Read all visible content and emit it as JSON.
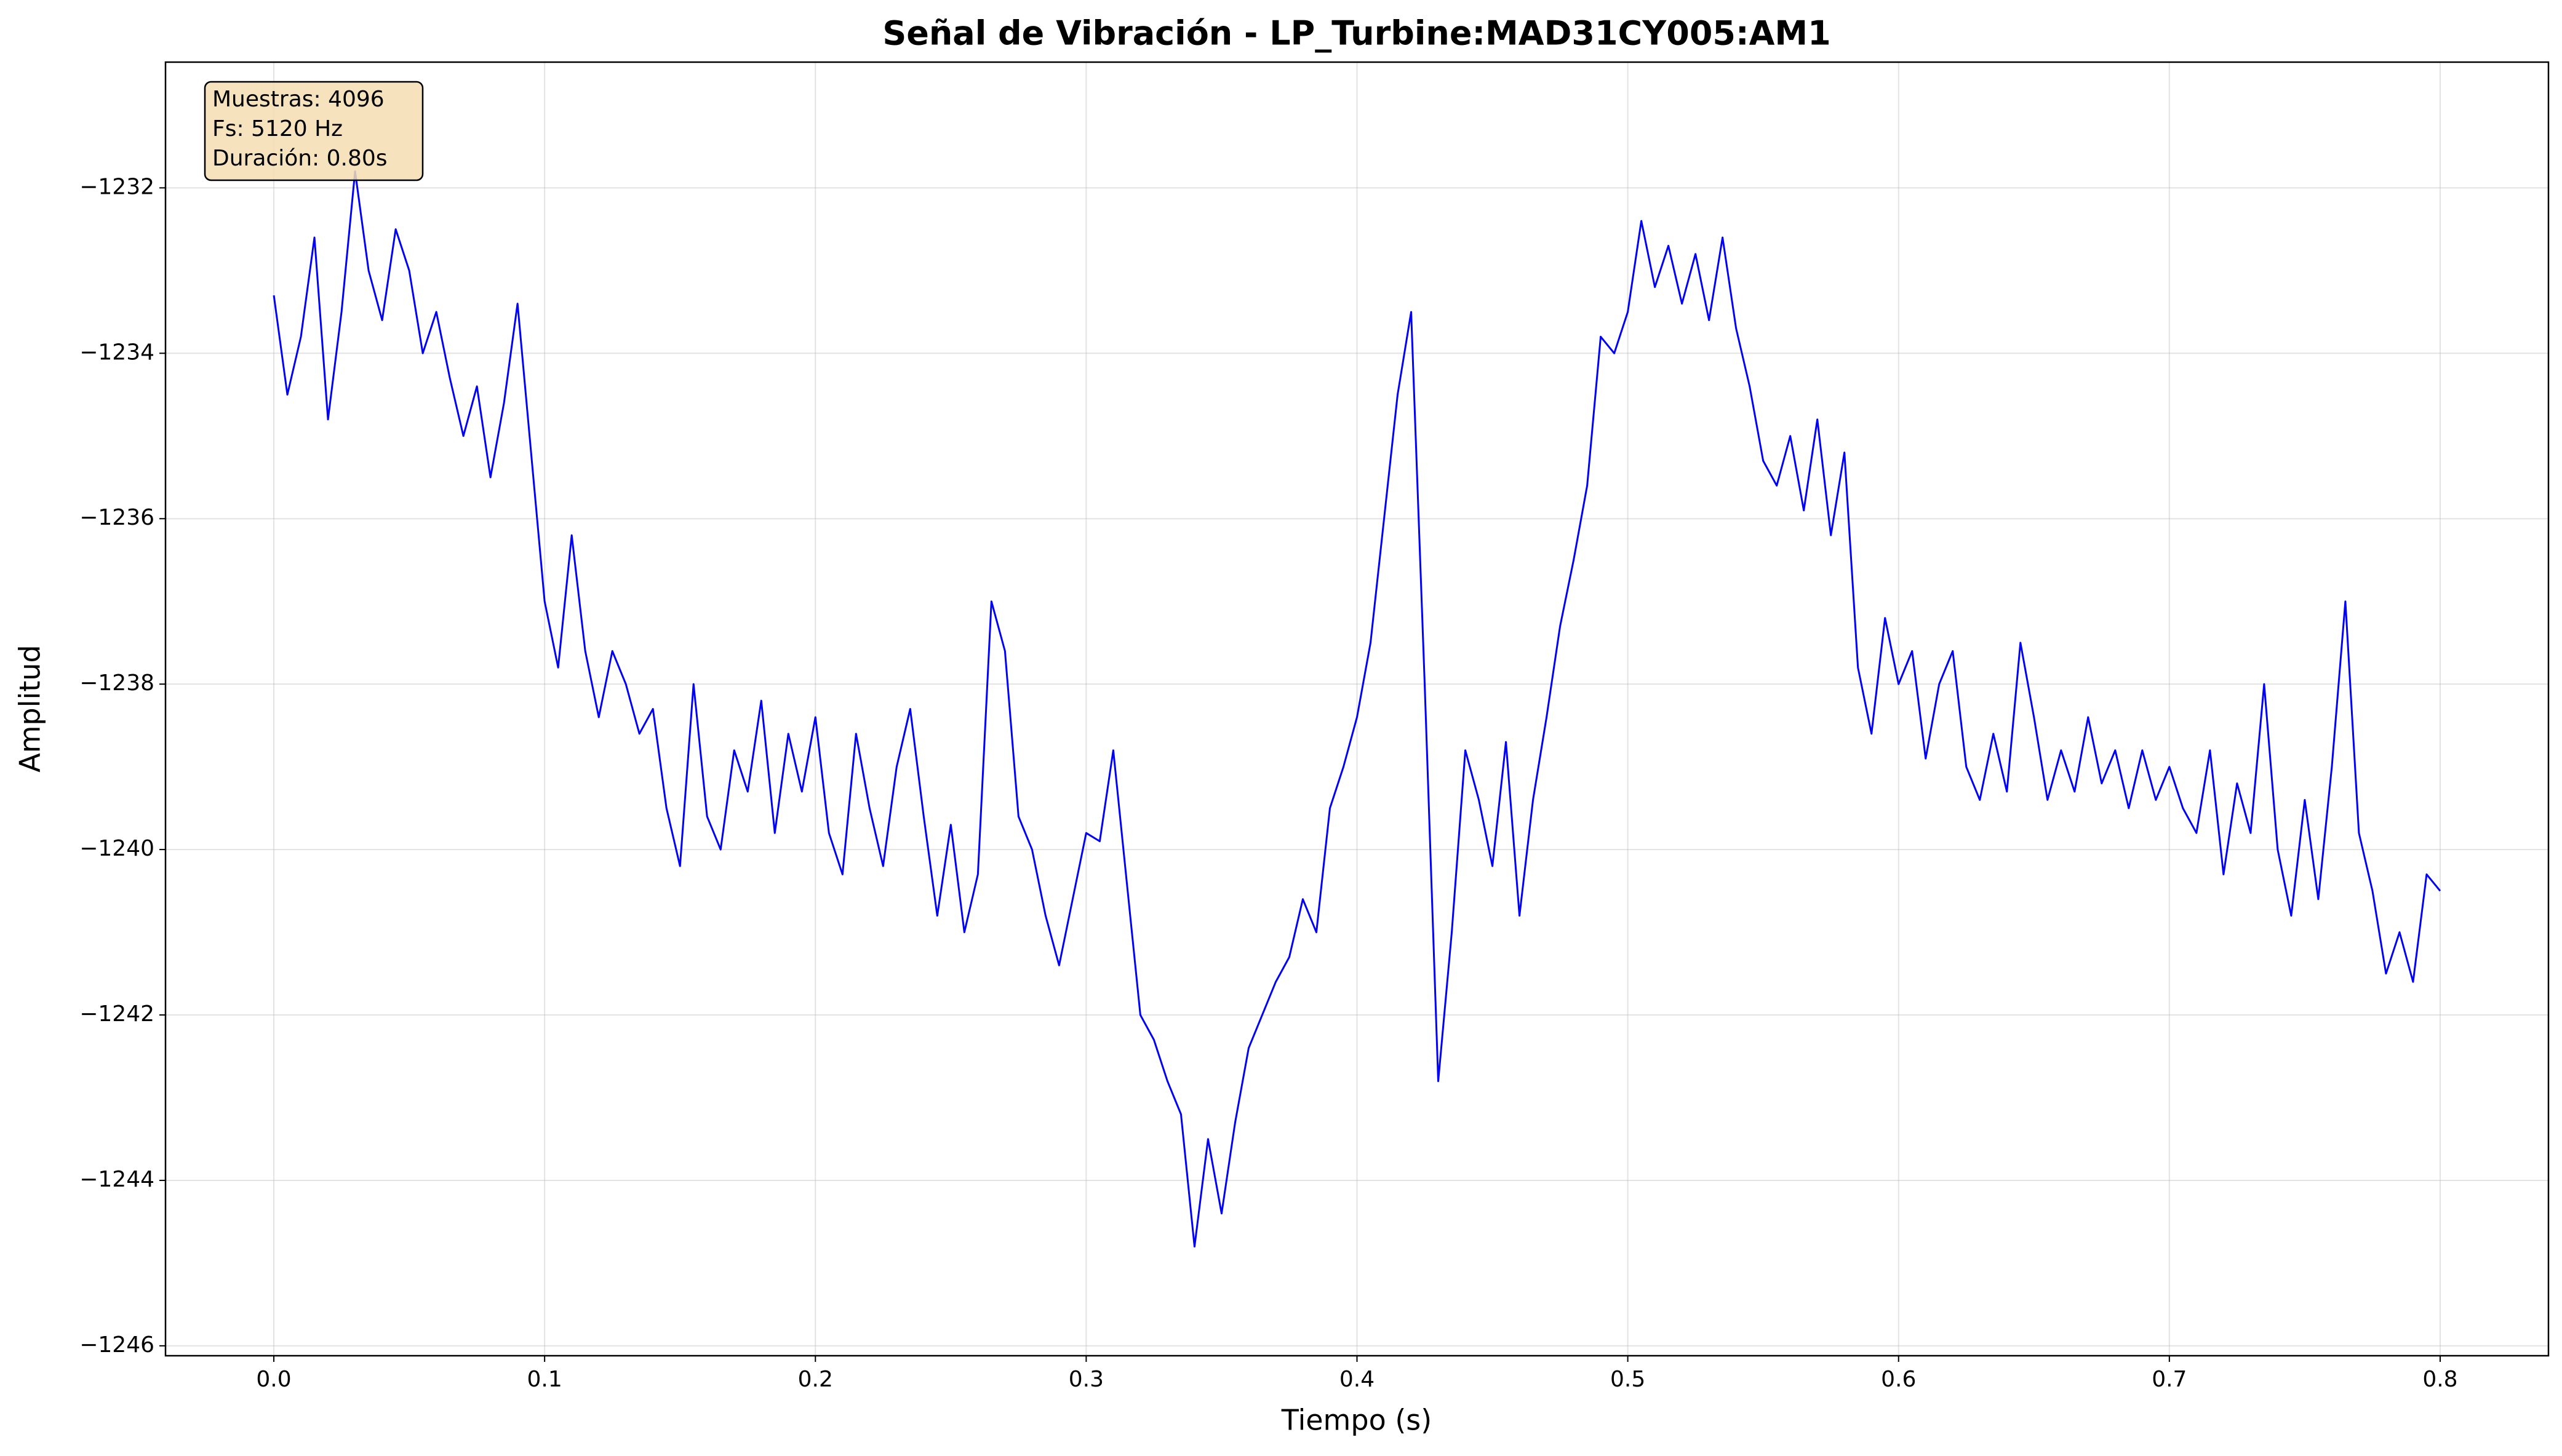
{
  "chart_data": {
    "type": "line",
    "title": "Señal de Vibración - LP_Turbine:MAD31CY005:AM1",
    "xlabel": "Tiempo (s)",
    "ylabel": "Amplitud",
    "annotations": [
      "Muestras: 4096",
      "Fs: 5120 Hz",
      "Duración: 0.80s"
    ],
    "color": "#0000ff",
    "grid": true,
    "xlim": [
      -0.04,
      0.84
    ],
    "ylim": [
      -1246.12,
      -1230.48
    ],
    "xticks": [
      {
        "value": 0,
        "label": "0.0"
      },
      0.1,
      0.2,
      0.3,
      0.4,
      0.5,
      0.6,
      0.7,
      0.8
    ],
    "yticks": [
      {
        "value": -1246,
        "label": "−1246"
      },
      {
        "value": -1244,
        "label": "−1244"
      },
      {
        "value": -1242,
        "label": "−1242"
      },
      {
        "value": -1240,
        "label": "−1240"
      },
      {
        "value": -1238,
        "label": "−1238"
      },
      {
        "value": -1236,
        "label": "−1236"
      },
      {
        "value": -1234,
        "label": "−1234"
      },
      {
        "value": -1232,
        "label": "−1232"
      }
    ],
    "x": [
      0.0,
      0.005,
      0.01,
      0.015,
      0.02,
      0.025,
      0.03,
      0.035,
      0.04,
      0.045,
      0.05,
      0.055,
      0.06,
      0.065,
      0.07,
      0.075,
      0.08,
      0.085,
      0.09,
      0.095,
      0.1,
      0.105,
      0.11,
      0.115,
      0.12,
      0.125,
      0.13,
      0.135,
      0.14,
      0.145,
      0.15,
      0.155,
      0.16,
      0.165,
      0.17,
      0.175,
      0.18,
      0.185,
      0.19,
      0.195,
      0.2,
      0.205,
      0.21,
      0.215,
      0.22,
      0.225,
      0.23,
      0.235,
      0.24,
      0.245,
      0.25,
      0.255,
      0.26,
      0.265,
      0.27,
      0.275,
      0.28,
      0.285,
      0.29,
      0.295,
      0.3,
      0.305,
      0.31,
      0.315,
      0.32,
      0.325,
      0.33,
      0.335,
      0.34,
      0.345,
      0.35,
      0.355,
      0.36,
      0.365,
      0.37,
      0.375,
      0.38,
      0.385,
      0.39,
      0.395,
      0.4,
      0.405,
      0.41,
      0.415,
      0.42,
      0.425,
      0.43,
      0.435,
      0.44,
      0.445,
      0.45,
      0.455,
      0.46,
      0.465,
      0.47,
      0.475,
      0.48,
      0.485,
      0.49,
      0.495,
      0.5,
      0.505,
      0.51,
      0.515,
      0.52,
      0.525,
      0.53,
      0.535,
      0.54,
      0.545,
      0.55,
      0.555,
      0.56,
      0.565,
      0.57,
      0.575,
      0.58,
      0.585,
      0.59,
      0.595,
      0.6,
      0.605,
      0.61,
      0.615,
      0.62,
      0.625,
      0.63,
      0.635,
      0.64,
      0.645,
      0.65,
      0.655,
      0.66,
      0.665,
      0.67,
      0.675,
      0.68,
      0.685,
      0.69,
      0.695,
      0.7,
      0.705,
      0.71,
      0.715,
      0.72,
      0.725,
      0.73,
      0.735,
      0.74,
      0.745,
      0.75,
      0.755,
      0.76,
      0.765,
      0.77,
      0.775,
      0.78,
      0.785,
      0.79,
      0.795,
      0.8
    ],
    "values": [
      -1233.3,
      -1234.5,
      -1233.8,
      -1232.6,
      -1234.8,
      -1233.5,
      -1231.8,
      -1233.0,
      -1233.6,
      -1232.5,
      -1233.0,
      -1234.0,
      -1233.5,
      -1234.3,
      -1235.0,
      -1234.4,
      -1235.5,
      -1234.6,
      -1233.4,
      -1235.2,
      -1237.0,
      -1237.8,
      -1236.2,
      -1237.6,
      -1238.4,
      -1237.6,
      -1238.0,
      -1238.6,
      -1238.3,
      -1239.5,
      -1240.2,
      -1238.0,
      -1239.6,
      -1240.0,
      -1238.8,
      -1239.3,
      -1238.2,
      -1239.8,
      -1238.6,
      -1239.3,
      -1238.4,
      -1239.8,
      -1240.3,
      -1238.6,
      -1239.5,
      -1240.2,
      -1239.0,
      -1238.3,
      -1239.6,
      -1240.8,
      -1239.7,
      -1241.0,
      -1240.3,
      -1237.0,
      -1237.6,
      -1239.6,
      -1240.0,
      -1240.8,
      -1241.4,
      -1240.6,
      -1239.8,
      -1239.9,
      -1238.8,
      -1240.4,
      -1242.0,
      -1242.3,
      -1242.8,
      -1243.2,
      -1244.8,
      -1243.5,
      -1244.4,
      -1243.3,
      -1242.4,
      -1242.0,
      -1241.6,
      -1241.3,
      -1240.6,
      -1241.0,
      -1239.5,
      -1239.0,
      -1238.4,
      -1237.5,
      -1236.0,
      -1234.5,
      -1233.5,
      -1238.0,
      -1242.8,
      -1241.0,
      -1238.8,
      -1239.4,
      -1240.2,
      -1238.7,
      -1240.8,
      -1239.4,
      -1238.4,
      -1237.3,
      -1236.5,
      -1235.6,
      -1233.8,
      -1234.0,
      -1233.5,
      -1232.4,
      -1233.2,
      -1232.7,
      -1233.4,
      -1232.8,
      -1233.6,
      -1232.6,
      -1233.7,
      -1234.4,
      -1235.3,
      -1235.6,
      -1235.0,
      -1235.9,
      -1234.8,
      -1236.2,
      -1235.2,
      -1237.8,
      -1238.6,
      -1237.2,
      -1238.0,
      -1237.6,
      -1238.9,
      -1238.0,
      -1237.6,
      -1239.0,
      -1239.4,
      -1238.6,
      -1239.3,
      -1237.5,
      -1238.4,
      -1239.4,
      -1238.8,
      -1239.3,
      -1238.4,
      -1239.2,
      -1238.8,
      -1239.5,
      -1238.8,
      -1239.4,
      -1239.0,
      -1239.5,
      -1239.8,
      -1238.8,
      -1240.3,
      -1239.2,
      -1239.8,
      -1238.0,
      -1240.0,
      -1240.8,
      -1239.4,
      -1240.6,
      -1239.0,
      -1237.0,
      -1239.8,
      -1240.5,
      -1241.5,
      -1241.0,
      -1241.6,
      -1240.3,
      -1240.5
    ]
  }
}
